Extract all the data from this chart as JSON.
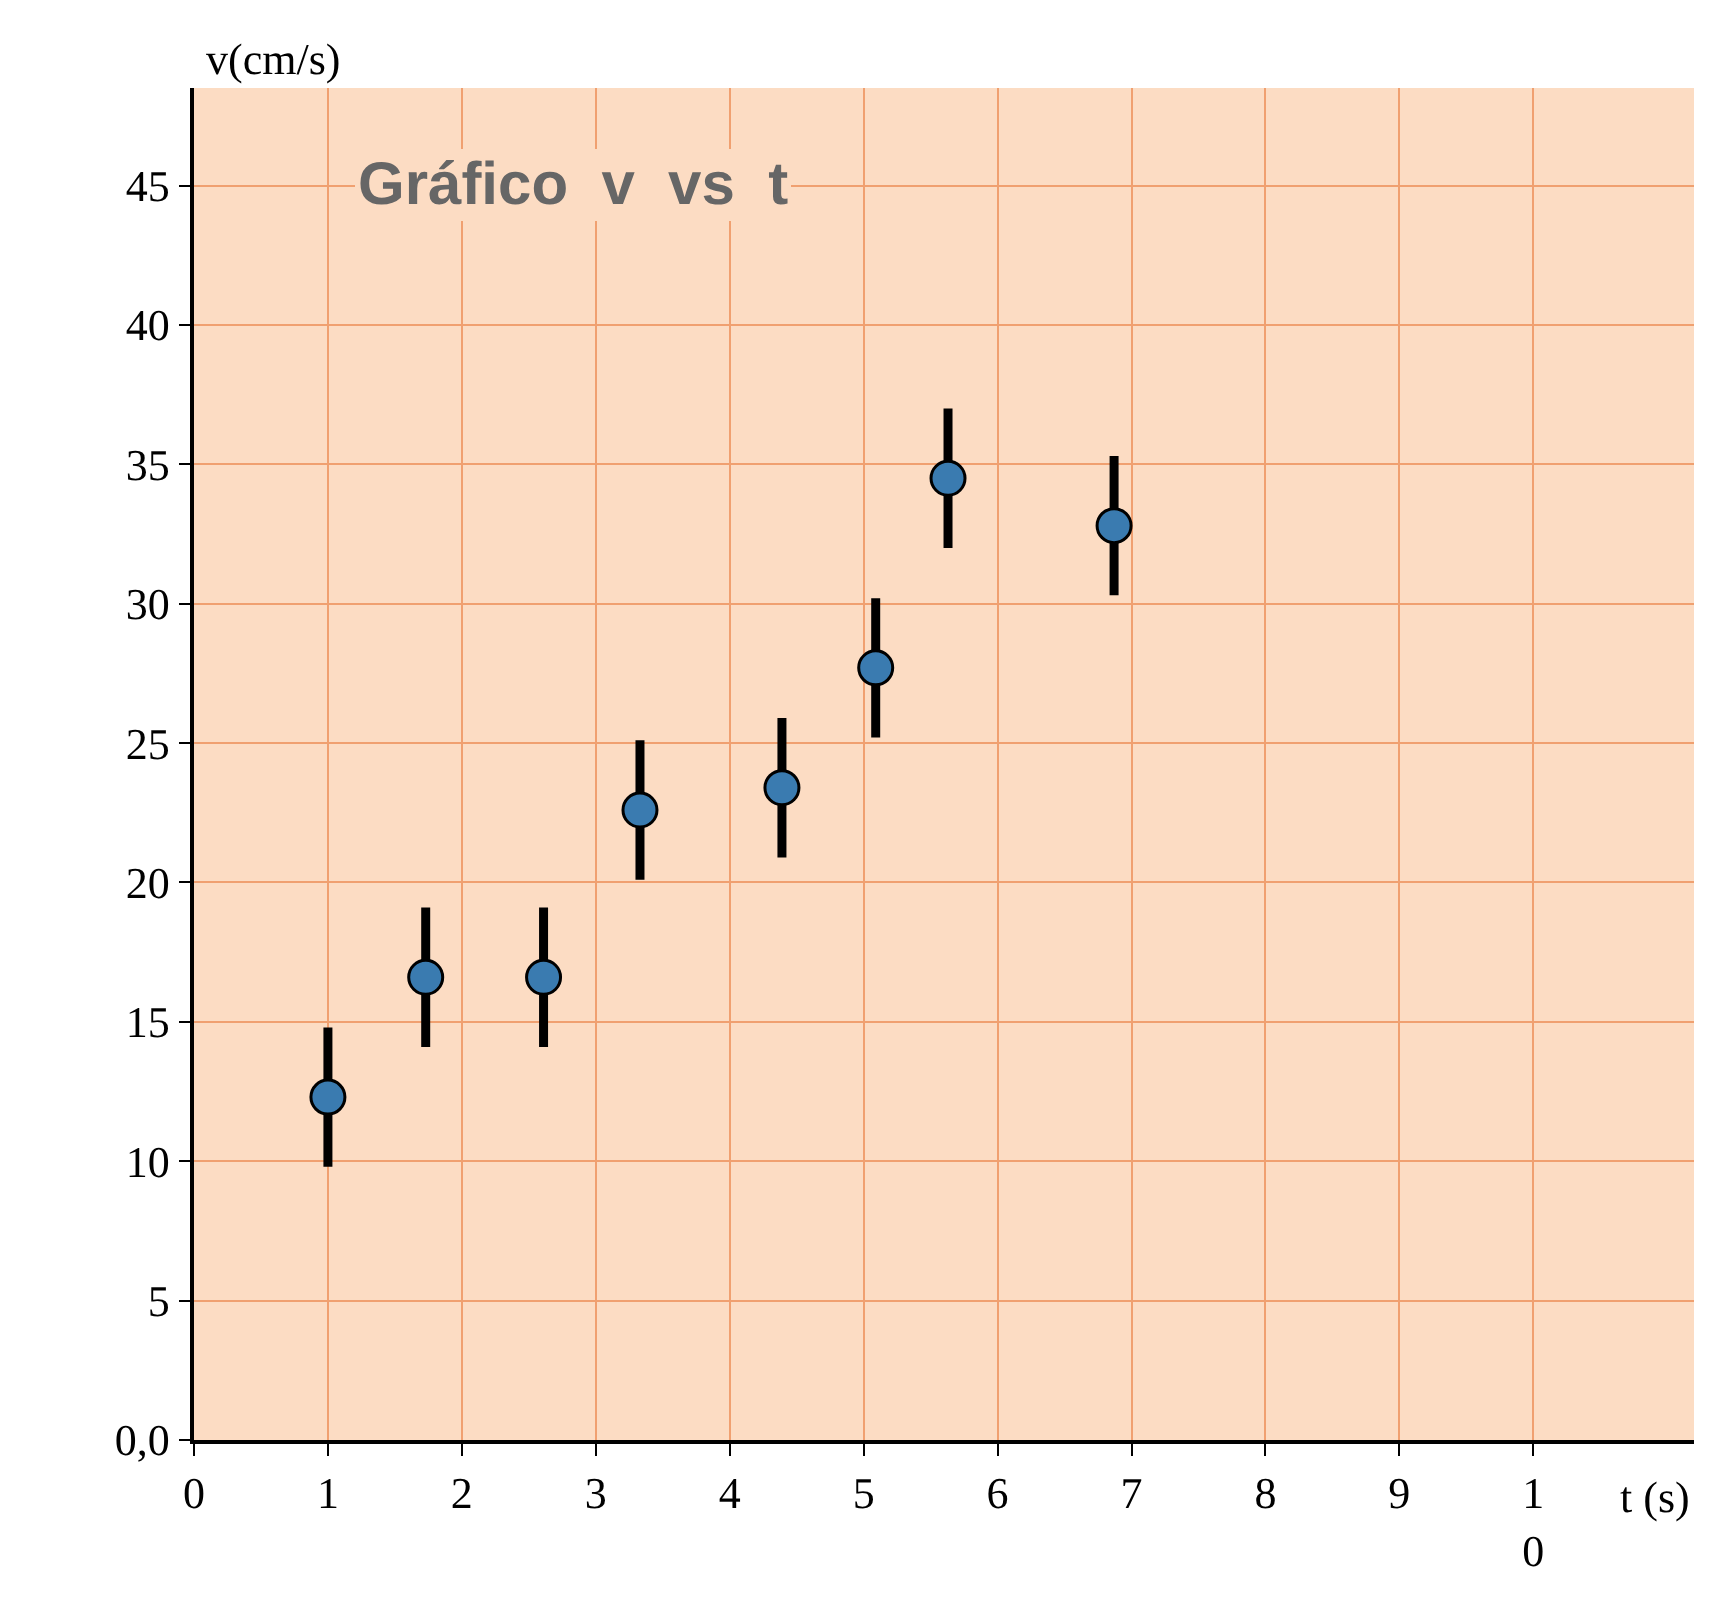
{
  "chart_data": {
    "type": "scatter",
    "title": "Gráfico  v  vs  t",
    "xlabel": "t (s)",
    "ylabel": "v(cm/s)",
    "x": [
      1.0,
      1.73,
      2.61,
      3.33,
      4.39,
      5.09,
      5.63,
      6.87
    ],
    "series": [
      {
        "color": "#3a7bb0",
        "values": [
          12.3,
          16.6,
          16.6,
          22.6,
          23.4,
          27.7,
          34.5,
          32.8
        ],
        "errors": [
          2.5,
          2.5,
          2.5,
          2.5,
          2.5,
          2.5,
          2.5,
          2.5
        ]
      }
    ],
    "xlim": [
      0,
      11.2
    ],
    "ylim": [
      0,
      48.5
    ],
    "xticks": [
      0,
      1,
      2,
      3,
      4,
      5,
      6,
      7,
      8,
      9,
      {
        "value": 10,
        "label": "1\n0"
      }
    ],
    "yticks": [
      {
        "value": 0,
        "label": "0,0"
      },
      5,
      10,
      15,
      20,
      25,
      30,
      35,
      40,
      45
    ],
    "grid": true,
    "marker": "circle"
  }
}
